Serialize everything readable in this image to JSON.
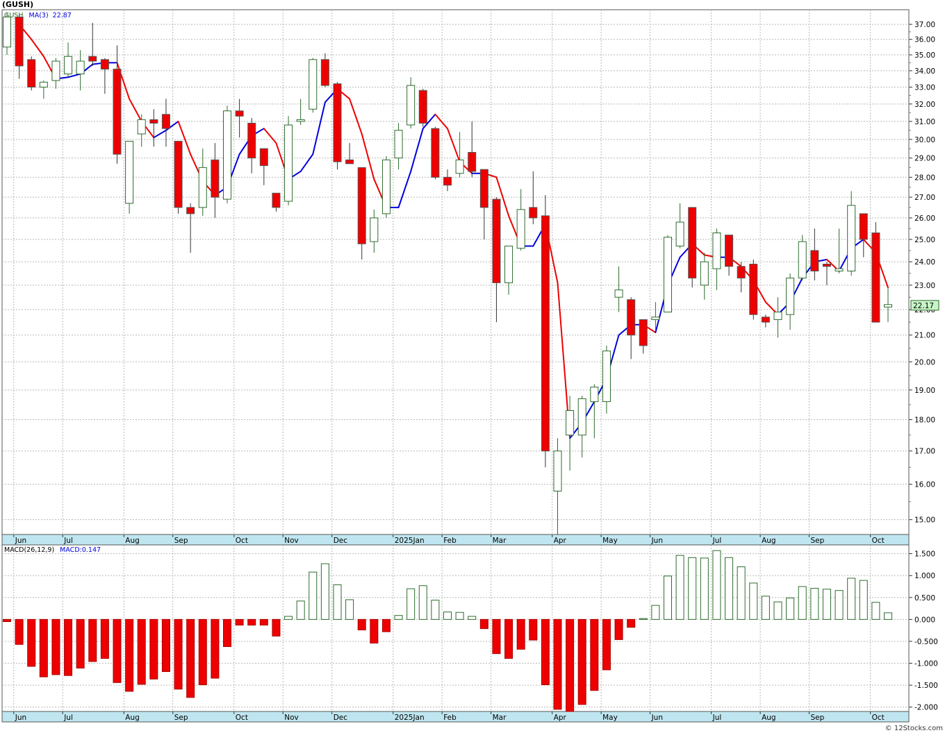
{
  "title": "(GUSH)",
  "footer": "© 12Stocks.com",
  "colors": {
    "up": "#2d6b2d",
    "down": "#ee0000",
    "ma_up": "#0000dd",
    "ma_down": "#ee0000",
    "axis_band": "#bfe6f0",
    "last_price_bg": "#c8f5c8"
  },
  "chart_data": [
    {
      "type": "candlestick",
      "legend": {
        "symbol": "GUSH",
        "ma_label": "MA(3)",
        "ma_value": "22.87"
      },
      "last_price": "22.17",
      "y_scale": "log",
      "ylim": [
        14.6,
        38.0
      ],
      "y_ticks": [
        15,
        16,
        17,
        18,
        19,
        20,
        21,
        22,
        23,
        24,
        25,
        26,
        27,
        28,
        29,
        30,
        31,
        32,
        33,
        34,
        35,
        36,
        37
      ],
      "month_labels": [
        {
          "label": "Jun",
          "i": 1
        },
        {
          "label": "Jul",
          "i": 5
        },
        {
          "label": "Aug",
          "i": 10
        },
        {
          "label": "Sep",
          "i": 14
        },
        {
          "label": "Oct",
          "i": 19
        },
        {
          "label": "Nov",
          "i": 23
        },
        {
          "label": "Dec",
          "i": 27
        },
        {
          "label": "2025Jan",
          "i": 32
        },
        {
          "label": "Feb",
          "i": 36
        },
        {
          "label": "Mar",
          "i": 40
        },
        {
          "label": "Apr",
          "i": 45
        },
        {
          "label": "May",
          "i": 49
        },
        {
          "label": "Jun",
          "i": 53
        },
        {
          "label": "Jul",
          "i": 58
        },
        {
          "label": "Aug",
          "i": 62
        },
        {
          "label": "Sep",
          "i": 66
        },
        {
          "label": "Oct",
          "i": 71
        }
      ],
      "candles": [
        {
          "o": 35.5,
          "h": 37.8,
          "l": 35.0,
          "c": 37.5
        },
        {
          "o": 37.5,
          "h": 37.7,
          "l": 33.5,
          "c": 34.3
        },
        {
          "o": 34.7,
          "h": 34.9,
          "l": 32.8,
          "c": 33.0
        },
        {
          "o": 33.0,
          "h": 33.4,
          "l": 32.3,
          "c": 33.3
        },
        {
          "o": 33.4,
          "h": 34.8,
          "l": 32.9,
          "c": 34.6
        },
        {
          "o": 33.8,
          "h": 35.8,
          "l": 33.6,
          "c": 34.9
        },
        {
          "o": 33.8,
          "h": 35.3,
          "l": 32.8,
          "c": 34.6
        },
        {
          "o": 34.9,
          "h": 37.1,
          "l": 34.3,
          "c": 34.6
        },
        {
          "o": 34.7,
          "h": 34.8,
          "l": 32.6,
          "c": 34.1
        },
        {
          "o": 34.1,
          "h": 35.6,
          "l": 28.7,
          "c": 29.2
        },
        {
          "o": 26.7,
          "h": 29.9,
          "l": 26.2,
          "c": 29.9
        },
        {
          "o": 30.3,
          "h": 31.4,
          "l": 29.6,
          "c": 31.1
        },
        {
          "o": 31.1,
          "h": 31.7,
          "l": 29.6,
          "c": 30.9
        },
        {
          "o": 31.4,
          "h": 32.3,
          "l": 29.6,
          "c": 30.6
        },
        {
          "o": 29.9,
          "h": 29.9,
          "l": 26.2,
          "c": 26.5
        },
        {
          "o": 26.5,
          "h": 26.7,
          "l": 24.4,
          "c": 26.2
        },
        {
          "o": 26.5,
          "h": 29.5,
          "l": 26.1,
          "c": 28.5
        },
        {
          "o": 28.9,
          "h": 29.8,
          "l": 26.0,
          "c": 27.0
        },
        {
          "o": 26.9,
          "h": 31.9,
          "l": 26.7,
          "c": 31.6
        },
        {
          "o": 31.6,
          "h": 32.3,
          "l": 30.1,
          "c": 31.3
        },
        {
          "o": 30.9,
          "h": 31.2,
          "l": 28.2,
          "c": 29.0
        },
        {
          "o": 29.5,
          "h": 29.5,
          "l": 27.6,
          "c": 28.6
        },
        {
          "o": 27.2,
          "h": 27.2,
          "l": 26.3,
          "c": 26.5
        },
        {
          "o": 26.8,
          "h": 31.3,
          "l": 26.6,
          "c": 30.8
        },
        {
          "o": 31.0,
          "h": 32.3,
          "l": 30.8,
          "c": 31.1
        },
        {
          "o": 31.7,
          "h": 34.8,
          "l": 31.5,
          "c": 34.7
        },
        {
          "o": 34.7,
          "h": 35.1,
          "l": 33.0,
          "c": 33.1
        },
        {
          "o": 33.2,
          "h": 33.3,
          "l": 28.4,
          "c": 28.8
        },
        {
          "o": 28.9,
          "h": 29.8,
          "l": 28.7,
          "c": 28.7
        },
        {
          "o": 28.5,
          "h": 28.5,
          "l": 24.1,
          "c": 24.8
        },
        {
          "o": 24.9,
          "h": 26.4,
          "l": 24.4,
          "c": 26.0
        },
        {
          "o": 26.2,
          "h": 29.1,
          "l": 26.0,
          "c": 28.9
        },
        {
          "o": 29.0,
          "h": 30.9,
          "l": 28.4,
          "c": 30.5
        },
        {
          "o": 30.8,
          "h": 33.6,
          "l": 30.6,
          "c": 33.1
        },
        {
          "o": 32.8,
          "h": 32.9,
          "l": 30.7,
          "c": 30.9
        },
        {
          "o": 30.6,
          "h": 30.7,
          "l": 27.9,
          "c": 28.0
        },
        {
          "o": 28.0,
          "h": 28.4,
          "l": 27.3,
          "c": 27.6
        },
        {
          "o": 28.2,
          "h": 30.4,
          "l": 28.0,
          "c": 28.9
        },
        {
          "o": 29.3,
          "h": 31.0,
          "l": 28.0,
          "c": 28.3
        },
        {
          "o": 28.4,
          "h": 28.4,
          "l": 25.0,
          "c": 26.5
        },
        {
          "o": 26.9,
          "h": 27.0,
          "l": 21.5,
          "c": 23.1
        },
        {
          "o": 23.1,
          "h": 24.7,
          "l": 22.6,
          "c": 24.7
        },
        {
          "o": 24.6,
          "h": 27.4,
          "l": 24.5,
          "c": 26.4
        },
        {
          "o": 26.5,
          "h": 28.3,
          "l": 25.7,
          "c": 26.0
        },
        {
          "o": 26.1,
          "h": 27.1,
          "l": 16.5,
          "c": 17.0
        },
        {
          "o": 15.8,
          "h": 17.4,
          "l": 14.6,
          "c": 17.0
        },
        {
          "o": 17.5,
          "h": 18.8,
          "l": 16.4,
          "c": 18.3
        },
        {
          "o": 17.5,
          "h": 18.8,
          "l": 16.8,
          "c": 18.7
        },
        {
          "o": 18.6,
          "h": 19.2,
          "l": 17.4,
          "c": 19.1
        },
        {
          "o": 18.6,
          "h": 20.6,
          "l": 18.2,
          "c": 20.4
        },
        {
          "o": 22.5,
          "h": 23.8,
          "l": 21.9,
          "c": 22.8
        },
        {
          "o": 22.4,
          "h": 22.5,
          "l": 20.1,
          "c": 21.0
        },
        {
          "o": 21.6,
          "h": 21.6,
          "l": 20.3,
          "c": 20.6
        },
        {
          "o": 21.6,
          "h": 22.3,
          "l": 21.2,
          "c": 21.7
        },
        {
          "o": 21.9,
          "h": 25.2,
          "l": 21.9,
          "c": 25.1
        },
        {
          "o": 24.7,
          "h": 26.7,
          "l": 24.6,
          "c": 25.8
        },
        {
          "o": 26.5,
          "h": 26.5,
          "l": 22.9,
          "c": 23.3
        },
        {
          "o": 23.0,
          "h": 24.4,
          "l": 22.4,
          "c": 24.0
        },
        {
          "o": 23.7,
          "h": 25.5,
          "l": 22.8,
          "c": 25.3
        },
        {
          "o": 25.2,
          "h": 25.2,
          "l": 23.4,
          "c": 23.8
        },
        {
          "o": 23.8,
          "h": 24.0,
          "l": 22.7,
          "c": 23.3
        },
        {
          "o": 23.9,
          "h": 24.1,
          "l": 21.6,
          "c": 21.8
        },
        {
          "o": 21.7,
          "h": 21.8,
          "l": 21.3,
          "c": 21.5
        },
        {
          "o": 21.6,
          "h": 22.5,
          "l": 20.9,
          "c": 21.9
        },
        {
          "o": 21.8,
          "h": 23.5,
          "l": 21.2,
          "c": 23.3
        },
        {
          "o": 23.3,
          "h": 25.2,
          "l": 23.2,
          "c": 24.9
        },
        {
          "o": 24.5,
          "h": 25.5,
          "l": 23.2,
          "c": 23.6
        },
        {
          "o": 23.9,
          "h": 24.0,
          "l": 23.0,
          "c": 23.8
        },
        {
          "o": 23.6,
          "h": 25.5,
          "l": 23.5,
          "c": 23.7
        },
        {
          "o": 23.6,
          "h": 27.3,
          "l": 23.4,
          "c": 26.6
        },
        {
          "o": 26.2,
          "h": 26.2,
          "l": 24.2,
          "c": 25.0
        },
        {
          "o": 25.3,
          "h": 25.8,
          "l": 21.5,
          "c": 21.5
        },
        {
          "o": 22.1,
          "h": 22.9,
          "l": 21.5,
          "c": 22.2
        }
      ],
      "ma": [
        37.0,
        36.0,
        34.9,
        33.5,
        33.6,
        33.8,
        34.4,
        34.5,
        34.5,
        32.3,
        31.0,
        30.1,
        30.5,
        31.0,
        29.2,
        27.8,
        27.1,
        27.5,
        29.2,
        30.2,
        30.6,
        29.8,
        27.9,
        28.3,
        29.2,
        32.1,
        32.9,
        32.3,
        30.3,
        27.9,
        26.5,
        26.5,
        28.3,
        30.6,
        31.4,
        30.6,
        28.8,
        28.2,
        28.2,
        28.0,
        26.1,
        24.7,
        24.7,
        25.7,
        23.1,
        17.4,
        17.9,
        18.6,
        19.4,
        21.0,
        21.4,
        21.4,
        21.1,
        23.0,
        24.2,
        24.8,
        24.3,
        24.2,
        24.2,
        23.8,
        23.2,
        22.3,
        21.8,
        22.3,
        23.3,
        24.0,
        24.1,
        23.6,
        24.6,
        25.0,
        24.4,
        22.9
      ],
      "ma_start_index": 1
    },
    {
      "type": "bar",
      "legend": {
        "label": "MACD(26,12,9)",
        "value_label": "MACD:0.147"
      },
      "ylim": [
        -2.1,
        1.7
      ],
      "y_ticks": [
        -2.0,
        -1.5,
        -1.0,
        -0.5,
        0.0,
        0.5,
        1.0,
        1.5
      ],
      "y_tick_labels": [
        "-2.000",
        "-1.500",
        "-1.000",
        "-0.500",
        "0.000",
        "0.500",
        "1.000",
        "1.500"
      ],
      "values": [
        -0.05,
        -0.57,
        -1.07,
        -1.31,
        -1.26,
        -1.28,
        -1.11,
        -0.96,
        -0.89,
        -1.44,
        -1.64,
        -1.48,
        -1.36,
        -1.19,
        -1.59,
        -1.78,
        -1.49,
        -1.34,
        -0.62,
        -0.13,
        -0.13,
        -0.13,
        -0.38,
        0.07,
        0.42,
        1.08,
        1.27,
        0.79,
        0.45,
        -0.24,
        -0.54,
        -0.28,
        0.09,
        0.7,
        0.77,
        0.44,
        0.17,
        0.16,
        0.07,
        -0.21,
        -0.78,
        -0.89,
        -0.68,
        -0.47,
        -1.49,
        -2.05,
        -2.1,
        -1.94,
        -1.62,
        -1.15,
        -0.46,
        -0.18,
        0.02,
        0.32,
        0.99,
        1.46,
        1.41,
        1.4,
        1.57,
        1.41,
        1.2,
        0.83,
        0.53,
        0.4,
        0.49,
        0.75,
        0.71,
        0.69,
        0.66,
        0.94,
        0.89,
        0.39,
        0.15
      ]
    }
  ]
}
